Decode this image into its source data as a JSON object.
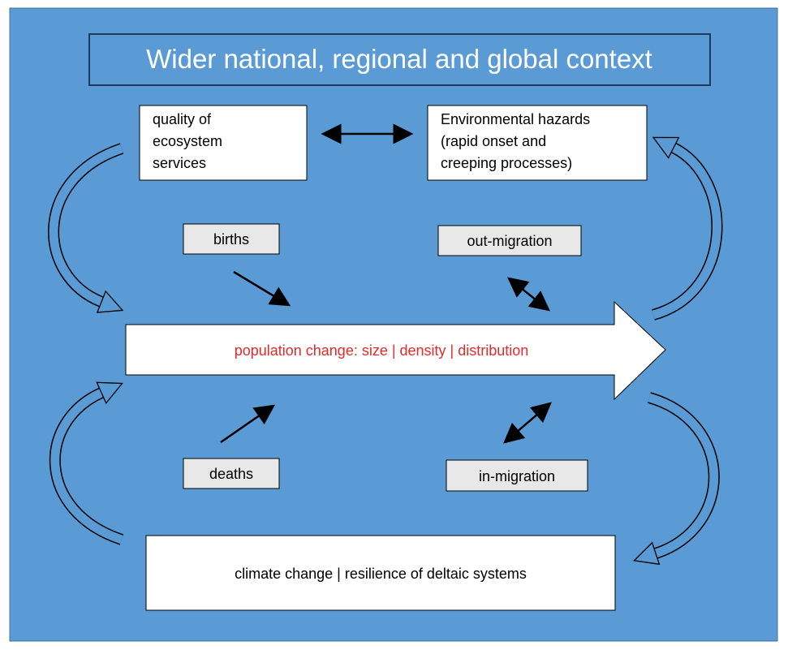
{
  "title": "Wider national, regional and global context",
  "nodes": [
    {
      "label": [
        "quality of",
        "ecosystem",
        "services"
      ]
    },
    {
      "label": [
        "Environmental hazards",
        "(rapid onset and",
        "creeping processes)"
      ]
    },
    {
      "label": [
        "births"
      ]
    },
    {
      "label": [
        "out-migration"
      ]
    },
    {
      "label": [
        "population change: size | density | distribution"
      ]
    },
    {
      "label": [
        "deaths"
      ]
    },
    {
      "label": [
        "in-migration"
      ]
    },
    {
      "label": [
        "climate change | resilience of deltaic systems"
      ]
    }
  ]
}
